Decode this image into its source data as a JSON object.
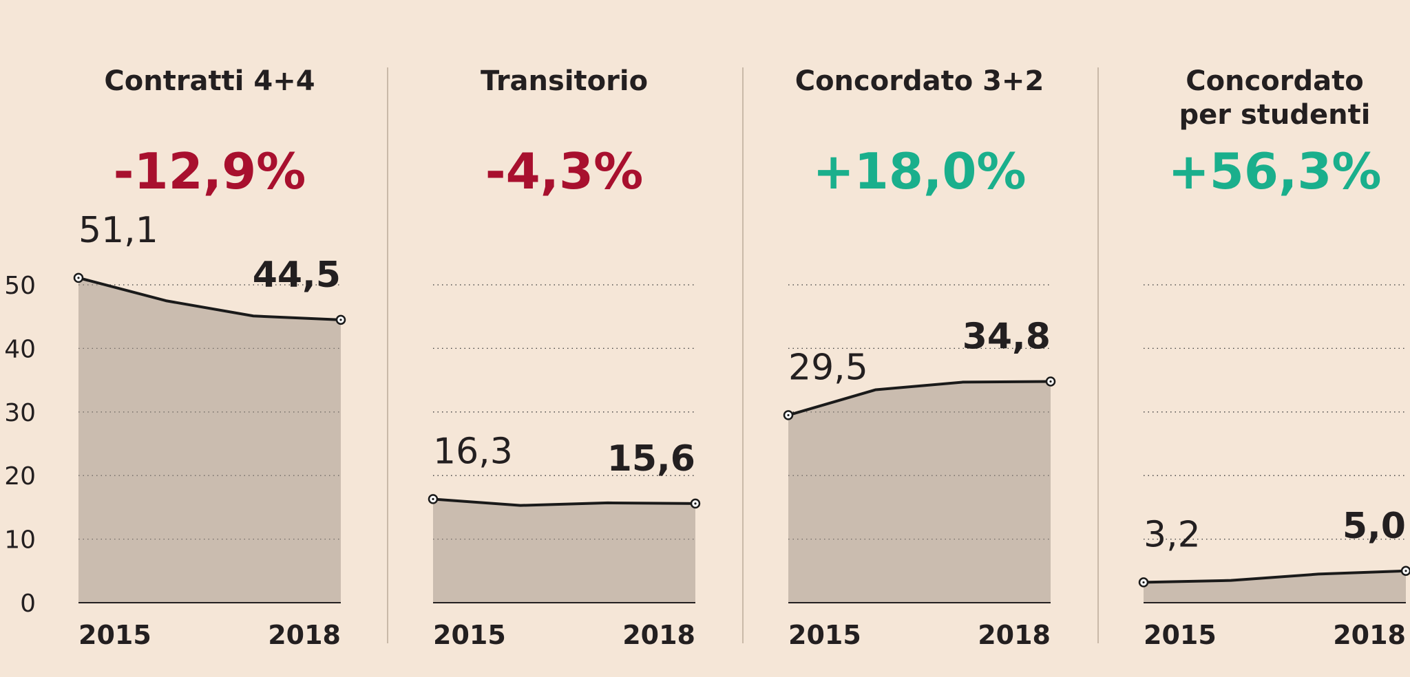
{
  "colors": {
    "background": "#f5e6d7",
    "area": "#cabcaf",
    "line": "#1a1a1a",
    "negative": "#a8102e",
    "positive": "#1aaf8c",
    "divider": "#c9b9a8"
  },
  "chart_data": [
    {
      "type": "area",
      "title_lines": [
        "Contratti 4+4"
      ],
      "change": "-12,9%",
      "change_sign": "negative",
      "x": [
        "2015",
        "2016",
        "2017",
        "2018"
      ],
      "values": [
        51.1,
        47.5,
        45.1,
        44.5
      ],
      "start_label": "51,1",
      "end_label": "44,5",
      "xtick_labels": [
        "2015",
        "2018"
      ],
      "ylim": [
        0,
        50
      ],
      "yticks": [
        "0",
        "10",
        "20",
        "30",
        "40",
        "50"
      ],
      "grid": true
    },
    {
      "type": "area",
      "title_lines": [
        "Transitorio"
      ],
      "change": "-4,3%",
      "change_sign": "negative",
      "x": [
        "2015",
        "2016",
        "2017",
        "2018"
      ],
      "values": [
        16.3,
        15.3,
        15.7,
        15.6
      ],
      "start_label": "16,3",
      "end_label": "15,6",
      "xtick_labels": [
        "2015",
        "2018"
      ],
      "ylim": [
        0,
        50
      ],
      "grid": true
    },
    {
      "type": "area",
      "title_lines": [
        "Concordato 3+2"
      ],
      "change": "+18,0%",
      "change_sign": "positive",
      "x": [
        "2015",
        "2016",
        "2017",
        "2018"
      ],
      "values": [
        29.5,
        33.5,
        34.7,
        34.8
      ],
      "start_label": "29,5",
      "end_label": "34,8",
      "xtick_labels": [
        "2015",
        "2018"
      ],
      "ylim": [
        0,
        50
      ],
      "grid": true
    },
    {
      "type": "area",
      "title_lines": [
        "Concordato",
        "per studenti"
      ],
      "change": "+56,3%",
      "change_sign": "positive",
      "x": [
        "2015",
        "2016",
        "2017",
        "2018"
      ],
      "values": [
        3.2,
        3.5,
        4.5,
        5.0
      ],
      "start_label": "3,2",
      "end_label": "5,0",
      "xtick_labels": [
        "2015",
        "2018"
      ],
      "ylim": [
        0,
        50
      ],
      "grid": true
    }
  ]
}
